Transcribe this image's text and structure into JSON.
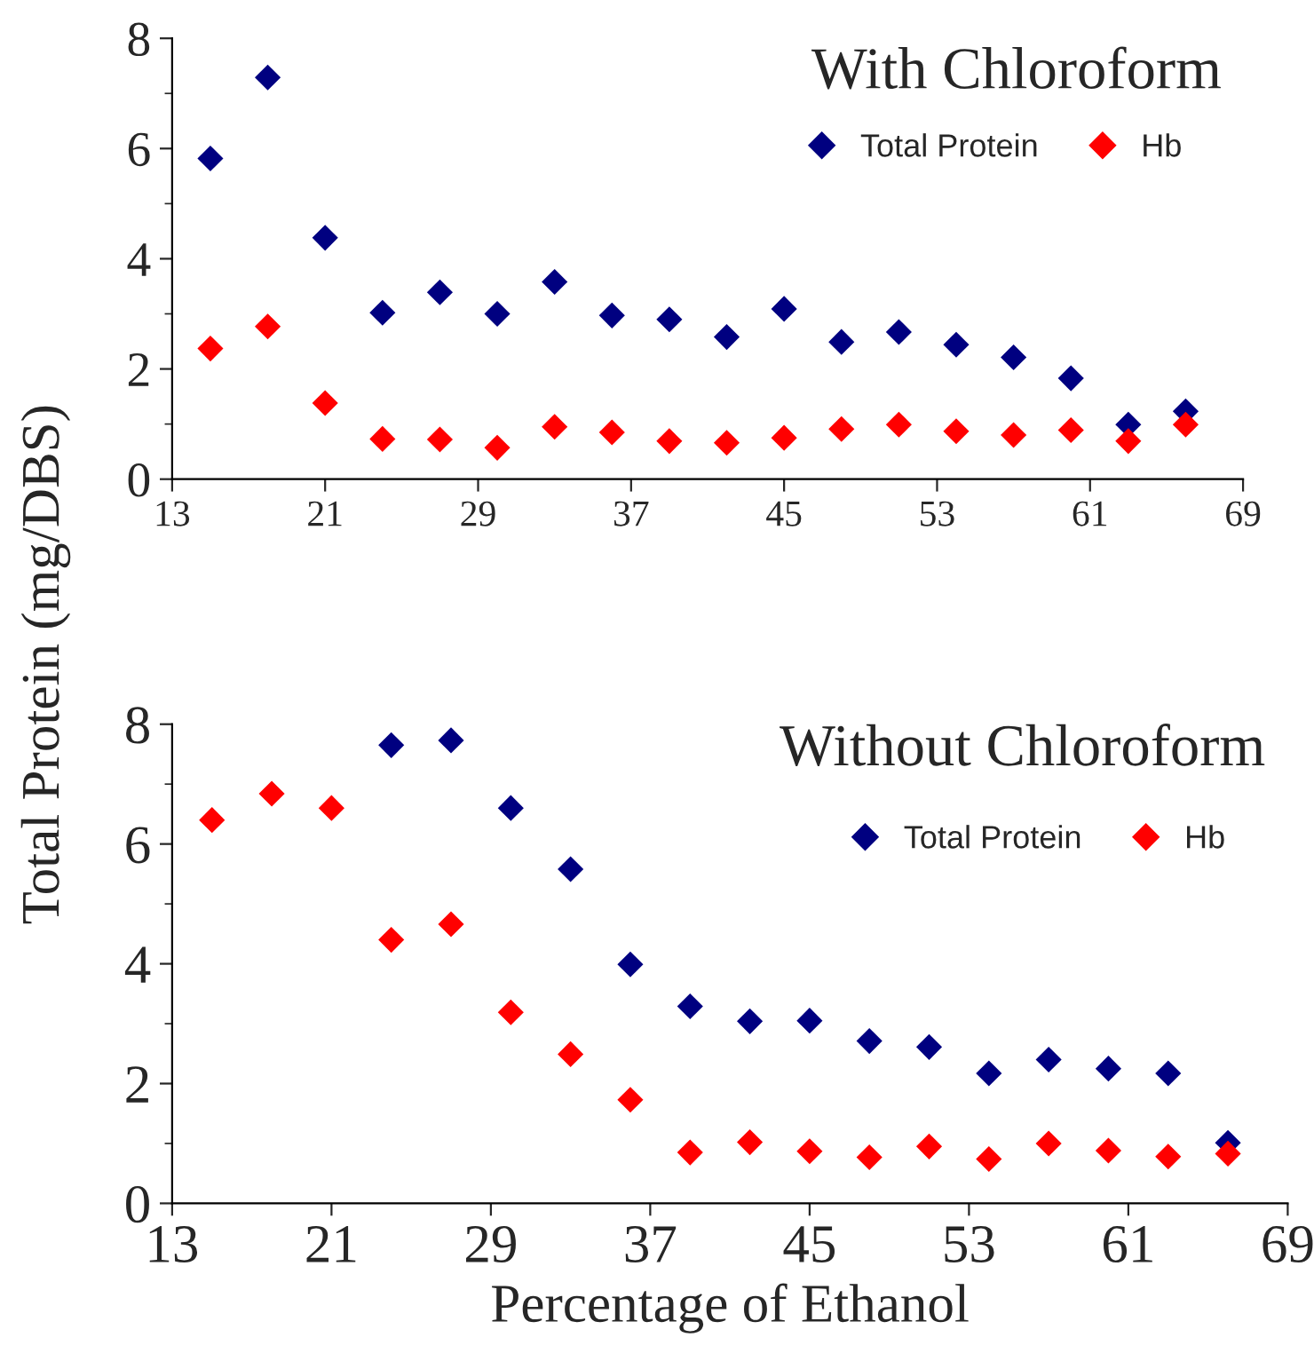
{
  "chart_data": [
    {
      "type": "scatter",
      "title": "With Chloroform",
      "ylabel": "Total Protein (mg/DBS)",
      "marker": "diamond",
      "legend": "top right",
      "grid": false,
      "xlim": [
        13,
        69
      ],
      "xticks": [
        13,
        21,
        29,
        37,
        45,
        53,
        61,
        69
      ],
      "ylim": [
        0,
        8
      ],
      "yticks": [
        0,
        2,
        4,
        6,
        8
      ],
      "series": [
        {
          "name": "Total Protein",
          "color": "#000080",
          "x": [
            15,
            18,
            21,
            24,
            27,
            30,
            33,
            36,
            39,
            42,
            45,
            48,
            51,
            54,
            57,
            60,
            63,
            66
          ],
          "values": [
            5.82,
            7.29,
            4.38,
            3.02,
            3.39,
            3.0,
            3.58,
            2.97,
            2.9,
            2.58,
            3.09,
            2.49,
            2.67,
            2.44,
            2.21,
            1.83,
            0.99,
            1.23
          ]
        },
        {
          "name": "Hb",
          "color": "#ff0000",
          "x": [
            15,
            18,
            21,
            24,
            27,
            30,
            33,
            36,
            39,
            42,
            45,
            48,
            51,
            54,
            57,
            60,
            63,
            66
          ],
          "values": [
            2.37,
            2.77,
            1.38,
            0.73,
            0.72,
            0.57,
            0.95,
            0.85,
            0.69,
            0.66,
            0.75,
            0.91,
            0.99,
            0.87,
            0.8,
            0.89,
            0.69,
            0.99
          ]
        }
      ]
    },
    {
      "type": "scatter",
      "title": "Without Chloroform",
      "xlabel": "Percentage of Ethanol",
      "marker": "diamond",
      "legend": "top right",
      "grid": false,
      "xlim": [
        13,
        69
      ],
      "xticks": [
        13,
        21,
        29,
        37,
        45,
        53,
        61,
        69
      ],
      "ylim": [
        0,
        8
      ],
      "yticks": [
        0,
        2,
        4,
        6,
        8
      ],
      "series": [
        {
          "name": "Total Protein",
          "color": "#000080",
          "x": [
            24,
            27,
            30,
            33,
            36,
            39,
            42,
            45,
            48,
            51,
            54,
            57,
            60,
            63,
            66
          ],
          "values": [
            7.65,
            7.73,
            6.6,
            5.58,
            3.99,
            3.29,
            3.04,
            3.05,
            2.71,
            2.61,
            2.17,
            2.4,
            2.25,
            2.17,
            1.01
          ]
        },
        {
          "name": "Hb",
          "color": "#ff0000",
          "x": [
            15,
            18,
            21,
            24,
            27,
            30,
            33,
            36,
            39,
            42,
            45,
            48,
            51,
            54,
            57,
            60,
            63,
            66
          ],
          "values": [
            6.4,
            6.84,
            6.6,
            4.4,
            4.66,
            3.19,
            2.49,
            1.73,
            0.85,
            1.02,
            0.87,
            0.77,
            0.95,
            0.74,
            1.0,
            0.88,
            0.78,
            0.83
          ]
        }
      ]
    }
  ]
}
